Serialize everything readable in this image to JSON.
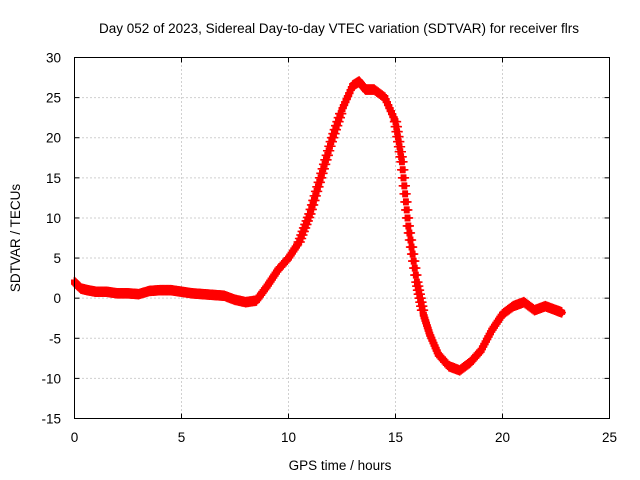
{
  "chart_data": {
    "type": "scatter",
    "title": "Day 052 of 2023, Sidereal Day-to-day VTEC variation (SDTVAR) for receiver flrs",
    "xlabel": "GPS time / hours",
    "ylabel": "SDTVAR / TECUs",
    "xlim": [
      0,
      25
    ],
    "ylim": [
      -15,
      30
    ],
    "xticks": [
      0,
      5,
      10,
      15,
      20,
      25
    ],
    "yticks": [
      -15,
      -10,
      -5,
      0,
      5,
      10,
      15,
      20,
      25,
      30
    ],
    "xtick_labels": [
      "0",
      "5",
      "10",
      "15",
      "20",
      "25"
    ],
    "ytick_labels": [
      "-15",
      "-10",
      "-5",
      "0",
      "5",
      "10",
      "15",
      "20",
      "25",
      "30"
    ],
    "grid": true,
    "marker": "+",
    "series": [
      {
        "name": "SDTVAR",
        "color": "#ff0000",
        "x": [
          0.0,
          0.3,
          0.6,
          1.0,
          1.5,
          2.0,
          2.5,
          3.0,
          3.5,
          4.0,
          4.5,
          5.0,
          5.5,
          6.0,
          6.5,
          7.0,
          7.5,
          8.0,
          8.5,
          9.0,
          9.5,
          10.0,
          10.5,
          11.0,
          11.5,
          12.0,
          12.5,
          13.0,
          13.3,
          13.6,
          14.0,
          14.5,
          15.0,
          15.3,
          15.6,
          16.0,
          16.3,
          16.6,
          17.0,
          17.5,
          18.0,
          18.5,
          19.0,
          19.5,
          20.0,
          20.5,
          21.0,
          21.5,
          22.0,
          22.5,
          22.8
        ],
        "y": [
          2.0,
          1.2,
          1.0,
          0.8,
          0.8,
          0.6,
          0.6,
          0.5,
          0.9,
          1.0,
          1.0,
          0.8,
          0.6,
          0.5,
          0.4,
          0.3,
          -0.2,
          -0.5,
          -0.3,
          1.5,
          3.5,
          5.0,
          7.0,
          10.5,
          15.0,
          19.5,
          23.5,
          26.5,
          27.0,
          26.0,
          26.0,
          25.0,
          22.0,
          17.0,
          9.0,
          2.0,
          -2.0,
          -4.5,
          -7.0,
          -8.5,
          -9.0,
          -8.0,
          -6.5,
          -4.0,
          -2.0,
          -1.0,
          -0.5,
          -1.5,
          -1.0,
          -1.5,
          -1.8
        ]
      }
    ]
  }
}
